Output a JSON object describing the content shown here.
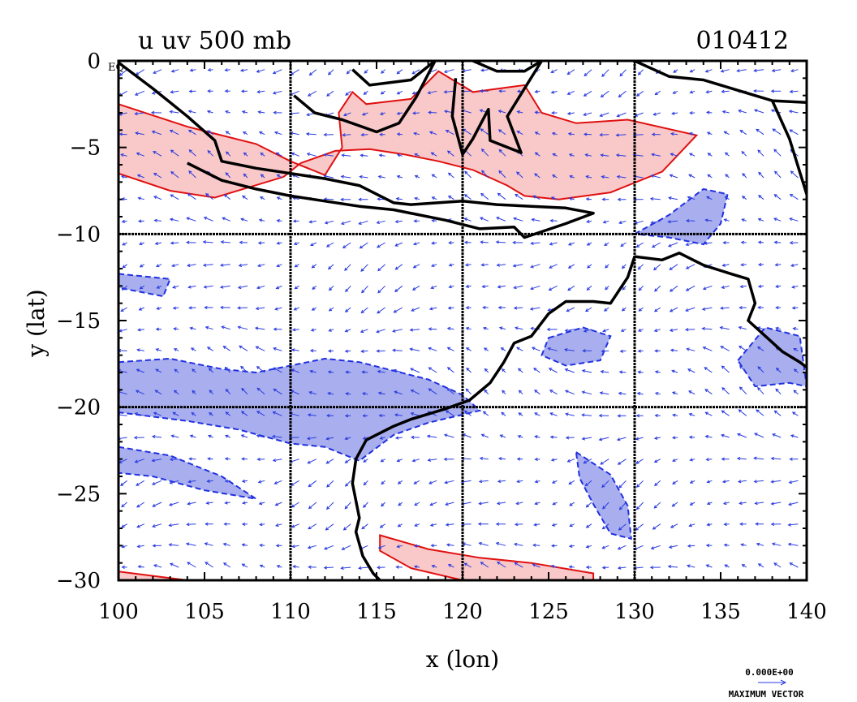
{
  "title": "u uv 500 mb",
  "date_label": "010412",
  "eq_marker": "EQ",
  "vector_legend": {
    "magnitude_label": "0.000E+00",
    "caption": "MAXIMUM VECTOR"
  },
  "colors": {
    "positive_fill": "#f9c8c8",
    "positive_line": "#e01010",
    "negative_fill": "#a9afee",
    "negative_line": "#2030e0",
    "coast": "#000000",
    "vector": "#2a3be0"
  },
  "chart_data": {
    "type": "map",
    "xlabel": "x (lon)",
    "ylabel": "y (lat)",
    "xlim": [
      100,
      140
    ],
    "ylim": [
      -30,
      0
    ],
    "x_ticks": [
      100,
      105,
      110,
      115,
      120,
      125,
      130,
      135,
      140
    ],
    "y_ticks": [
      0,
      -5,
      -10,
      -15,
      -20,
      -25,
      -30
    ],
    "y_tick_labels": [
      "0",
      "−5",
      "−10",
      "−15",
      "−20",
      "−25",
      "−30"
    ],
    "grid_lines_lon": [
      110,
      120,
      130
    ],
    "grid_lines_lat": [
      -10,
      -20
    ],
    "grid": true,
    "positive_regions": [
      [
        [
          100,
          -2.5
        ],
        [
          104,
          -3.8
        ],
        [
          108,
          -4.8
        ],
        [
          110,
          -5.8
        ],
        [
          112,
          -6.6
        ],
        [
          113,
          -5
        ],
        [
          112.8,
          -3
        ],
        [
          113.6,
          -1.8
        ],
        [
          114.4,
          -2.5
        ],
        [
          117,
          -2.2
        ],
        [
          118.6,
          -0.6
        ],
        [
          120.6,
          -1.8
        ],
        [
          123.6,
          -1.4
        ],
        [
          124.6,
          -3
        ],
        [
          126.6,
          -3.6
        ],
        [
          129.6,
          -3.4
        ],
        [
          133.6,
          -4.3
        ],
        [
          131.6,
          -6.4
        ],
        [
          128.6,
          -7.6
        ],
        [
          125.6,
          -8
        ],
        [
          123.6,
          -7.8
        ],
        [
          122.6,
          -7.2
        ],
        [
          120.6,
          -6.3
        ],
        [
          118.6,
          -5.8
        ],
        [
          116.6,
          -5.4
        ],
        [
          114.6,
          -5.1
        ],
        [
          112.6,
          -5.2
        ],
        [
          110.6,
          -5.9
        ],
        [
          109.6,
          -6.7
        ],
        [
          107.6,
          -7.3
        ],
        [
          105.6,
          -7.9
        ],
        [
          103,
          -7.5
        ],
        [
          100,
          -6.5
        ]
      ],
      [
        [
          115.2,
          -27.4
        ],
        [
          118,
          -28.2
        ],
        [
          121,
          -28.7
        ],
        [
          124,
          -29
        ],
        [
          127.6,
          -29.6
        ],
        [
          127.6,
          -30
        ],
        [
          120,
          -30
        ],
        [
          117,
          -29.3
        ],
        [
          115.2,
          -28.3
        ]
      ],
      [
        [
          100,
          -29.5
        ],
        [
          104,
          -30
        ],
        [
          100,
          -30
        ]
      ]
    ],
    "negative_regions": [
      [
        [
          100,
          -17.4
        ],
        [
          103,
          -17.2
        ],
        [
          106,
          -17.8
        ],
        [
          108,
          -18
        ],
        [
          110,
          -17.6
        ],
        [
          112,
          -17.2
        ],
        [
          114,
          -17.4
        ],
        [
          116,
          -17.9
        ],
        [
          118,
          -18.4
        ],
        [
          120,
          -19.3
        ],
        [
          121,
          -20.2
        ],
        [
          118,
          -20.9
        ],
        [
          116,
          -21.6
        ],
        [
          114,
          -23.1
        ],
        [
          112,
          -22.3
        ],
        [
          110,
          -22.1
        ],
        [
          107,
          -21.3
        ],
        [
          104,
          -20.8
        ],
        [
          100,
          -20.3
        ]
      ],
      [
        [
          100,
          -22.3
        ],
        [
          103,
          -22.8
        ],
        [
          106,
          -24
        ],
        [
          108,
          -25.3
        ],
        [
          105,
          -24.8
        ],
        [
          102,
          -24
        ],
        [
          100,
          -23.8
        ]
      ],
      [
        [
          130,
          -10
        ],
        [
          132,
          -8.9
        ],
        [
          134,
          -7.4
        ],
        [
          135.4,
          -7.7
        ],
        [
          135,
          -9.4
        ],
        [
          134,
          -10.6
        ],
        [
          132,
          -10.2
        ]
      ],
      [
        [
          125,
          -16
        ],
        [
          127,
          -15.4
        ],
        [
          128.6,
          -15.9
        ],
        [
          128,
          -17.3
        ],
        [
          126,
          -17.6
        ],
        [
          124.6,
          -17
        ]
      ],
      [
        [
          126.6,
          -22.6
        ],
        [
          128.6,
          -23.9
        ],
        [
          129.6,
          -25.7
        ],
        [
          129.8,
          -27.6
        ],
        [
          128.6,
          -27.3
        ],
        [
          127.6,
          -25.6
        ],
        [
          126.8,
          -24.1
        ]
      ],
      [
        [
          136,
          -17.3
        ],
        [
          137.6,
          -15.4
        ],
        [
          139.6,
          -15.9
        ],
        [
          140,
          -18.8
        ],
        [
          139,
          -18.6
        ],
        [
          137,
          -18.8
        ]
      ],
      [
        [
          100,
          -12.3
        ],
        [
          103,
          -12.6
        ],
        [
          102.6,
          -13.6
        ],
        [
          100,
          -13.1
        ]
      ]
    ],
    "coastlines": [
      [
        [
          100,
          -0.1
        ],
        [
          102,
          -1.6
        ],
        [
          104,
          -3.2
        ],
        [
          105.6,
          -4.6
        ],
        [
          106,
          -5.8
        ],
        [
          108,
          -6.2
        ],
        [
          110,
          -6.5
        ],
        [
          112,
          -6.8
        ],
        [
          114,
          -7.2
        ],
        [
          116,
          -8.2
        ],
        [
          117,
          -8.3
        ],
        [
          120,
          -8.1
        ],
        [
          122,
          -8.3
        ],
        [
          124,
          -8.4
        ],
        [
          126,
          -8.5
        ],
        [
          127.6,
          -8.8
        ],
        [
          126,
          -9.4
        ],
        [
          123.6,
          -10.2
        ],
        [
          123,
          -9.6
        ],
        [
          121,
          -9.7
        ],
        [
          119,
          -9.2
        ],
        [
          116,
          -8.6
        ],
        [
          114,
          -8.4
        ],
        [
          112,
          -8.1
        ],
        [
          110,
          -7.8
        ],
        [
          108,
          -7.4
        ],
        [
          106,
          -6.9
        ],
        [
          104,
          -5.9
        ]
      ],
      [
        [
          113.6,
          -0.5
        ],
        [
          114.6,
          -1.4
        ],
        [
          117,
          -1.1
        ],
        [
          118.4,
          0
        ],
        [
          117.3,
          -2.1
        ],
        [
          116.3,
          -3.6
        ],
        [
          115,
          -4.1
        ],
        [
          113,
          -3.4
        ],
        [
          111.4,
          -3
        ],
        [
          110.2,
          -2
        ]
      ],
      [
        [
          120.6,
          0
        ],
        [
          122,
          -0.6
        ],
        [
          123.6,
          -0.6
        ],
        [
          124.6,
          0
        ],
        [
          123.6,
          -1.6
        ],
        [
          122.6,
          -3.2
        ],
        [
          123.4,
          -5.3
        ],
        [
          121.6,
          -4.6
        ],
        [
          121.5,
          -2.8
        ],
        [
          120.6,
          -4.5
        ],
        [
          120,
          -5.4
        ],
        [
          119.4,
          -3.2
        ],
        [
          119.6,
          -1
        ]
      ],
      [
        [
          130,
          0
        ],
        [
          132,
          -0.9
        ],
        [
          134,
          -1.1
        ],
        [
          136,
          -1.7
        ],
        [
          138,
          -2.3
        ],
        [
          140,
          -2.4
        ]
      ],
      [
        [
          138,
          -2.3
        ],
        [
          139,
          -4.5
        ],
        [
          140,
          -7.7
        ]
      ],
      [
        [
          130,
          -11.3
        ],
        [
          131.6,
          -11.5
        ],
        [
          132.6,
          -11.1
        ],
        [
          134,
          -11.8
        ],
        [
          135.6,
          -12.3
        ],
        [
          136.6,
          -12.6
        ],
        [
          137,
          -14
        ],
        [
          136.6,
          -15
        ],
        [
          137.6,
          -15.9
        ],
        [
          138.6,
          -16.8
        ],
        [
          139.6,
          -17.4
        ],
        [
          140,
          -17.7
        ]
      ],
      [
        [
          130,
          -11.3
        ],
        [
          129.6,
          -12.5
        ],
        [
          128.6,
          -14
        ],
        [
          127.6,
          -13.9
        ],
        [
          126,
          -13.9
        ],
        [
          125,
          -14.6
        ],
        [
          124,
          -15.9
        ],
        [
          123,
          -16.3
        ],
        [
          122.4,
          -17.4
        ],
        [
          121.6,
          -18.6
        ],
        [
          120.4,
          -19.6
        ],
        [
          119,
          -20.1
        ],
        [
          117,
          -20.7
        ],
        [
          116,
          -21.1
        ],
        [
          114.4,
          -21.9
        ],
        [
          113.8,
          -23
        ],
        [
          113.6,
          -24.4
        ],
        [
          114,
          -26.4
        ],
        [
          113.8,
          -27.2
        ],
        [
          114.2,
          -28.6
        ],
        [
          114.8,
          -29.6
        ],
        [
          115.2,
          -30
        ]
      ]
    ],
    "vector_field": {
      "lon_spacing": 1.0,
      "lat_spacing": 1.25,
      "scale_note": "direction arrows only"
    }
  }
}
